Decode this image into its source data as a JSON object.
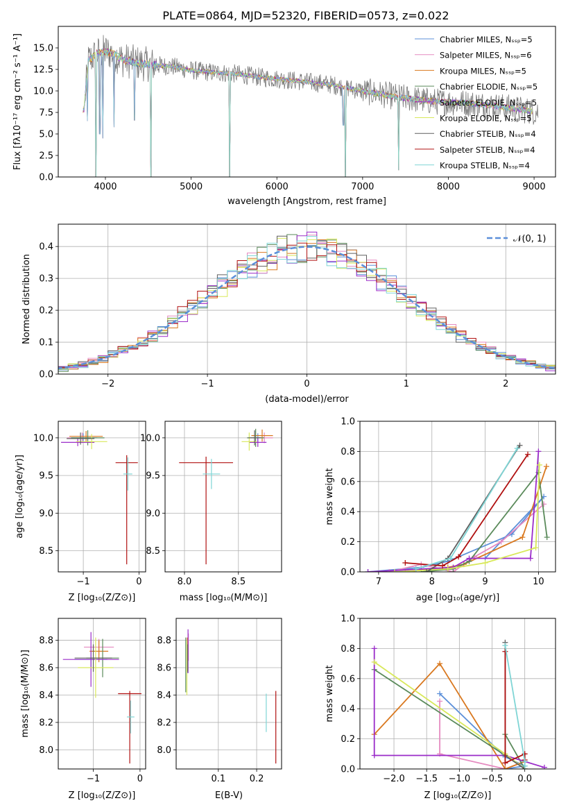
{
  "figure_title": "PLATE=0864, MJD=52320, FIBERID=0573, z=0.022",
  "colors": {
    "chab_miles": "#5b8fd9",
    "salp_miles": "#e58ac0",
    "krou_miles": "#d9781f",
    "chab_elodie": "#5a8a5a",
    "salp_elodie": "#9a2bc9",
    "krou_elodie": "#d8e85a",
    "chab_stelib": "#5f5f5f",
    "salp_stelib": "#b01010",
    "krou_stelib": "#7fd5d5",
    "gauss": "#5b8fd9",
    "grid": "#b0b0b0"
  },
  "chart_data": [
    {
      "id": "spectrum",
      "type": "line",
      "title": "",
      "xlabel": "wavelength [Angstrom, rest frame]",
      "ylabel": "Flux [fλ10⁻¹⁷ erg cm⁻² s⁻¹ A⁻¹]",
      "xlim": [
        3450,
        9250
      ],
      "ylim": [
        0,
        17.5
      ],
      "xticks": [
        4000,
        5000,
        6000,
        7000,
        8000,
        9000
      ],
      "yticks": [
        0.0,
        2.5,
        5.0,
        7.5,
        10.0,
        12.5,
        15.0
      ],
      "grid": false,
      "legend_position": "upper-right",
      "legend": [
        {
          "text": "Chabrier MILES, Nₛₛₚ=5",
          "color_key": "chab_miles"
        },
        {
          "text": "Salpeter MILES, Nₛₛₚ=6",
          "color_key": "salp_miles"
        },
        {
          "text": "Kroupa MILES, Nₛₛₚ=5",
          "color_key": "krou_miles"
        },
        {
          "text": "Chabrier ELODIE, Nₛₛₚ=5",
          "color_key": "chab_elodie"
        },
        {
          "text": "Salpeter ELODIE, Nₛₛₚ=5",
          "color_key": "salp_elodie"
        },
        {
          "text": "Kroupa ELODIE, Nₛₛₚ=5",
          "color_key": "krou_elodie"
        },
        {
          "text": "Chabrier STELIB, Nₛₛₚ=4",
          "color_key": "chab_stelib"
        },
        {
          "text": "Salpeter STELIB, Nₛₛₚ=4",
          "color_key": "salp_stelib"
        },
        {
          "text": "Kroupa STELIB, Nₛₛₚ=4",
          "color_key": "krou_stelib"
        }
      ],
      "continuum": {
        "wavelength": [
          3750,
          3800,
          3900,
          4000,
          4100,
          4200,
          4400,
          4600,
          4800,
          5000,
          5200,
          5500,
          5800,
          6000,
          6300,
          6600,
          7000,
          7400,
          7800,
          8200,
          8600,
          9000
        ],
        "flux": [
          7.8,
          13.5,
          14.3,
          14.6,
          14.3,
          13.6,
          13.2,
          13.0,
          12.8,
          12.4,
          12.2,
          12.0,
          11.6,
          11.4,
          11.1,
          10.8,
          10.0,
          9.3,
          8.8,
          8.6,
          8.2,
          7.6
        ]
      },
      "dips": [
        {
          "wavelength": 3790,
          "flux": 6.5
        },
        {
          "wavelength": 3890,
          "flux": 0.0
        },
        {
          "wavelength": 3935,
          "flux": 5.0
        },
        {
          "wavelength": 3970,
          "flux": 4.5
        },
        {
          "wavelength": 4102,
          "flux": 5.8
        },
        {
          "wavelength": 4340,
          "flux": 6.6
        },
        {
          "wavelength": 4530,
          "flux": 0.0
        },
        {
          "wavelength": 5450,
          "flux": 0.0
        },
        {
          "wavelength": 6775,
          "flux": 6.0
        },
        {
          "wavelength": 6800,
          "flux": 0.0
        },
        {
          "wavelength": 7420,
          "flux": 0.8
        }
      ]
    },
    {
      "id": "residuals",
      "type": "histogram",
      "title": "",
      "xlabel": "(data-model)/error",
      "ylabel": "Normed distribution",
      "xlim": [
        -2.5,
        2.5
      ],
      "ylim": [
        0,
        0.47
      ],
      "xticks": [
        -2,
        -1,
        0,
        1,
        2
      ],
      "yticks": [
        0.0,
        0.1,
        0.2,
        0.3,
        0.4
      ],
      "grid": true,
      "legend_position": "upper-right",
      "legend": [
        {
          "text": "𝒩(0, 1)",
          "color_key": "gauss",
          "style": "dashed"
        }
      ],
      "gaussian": {
        "mean": 0,
        "sigma": 1
      },
      "bin_width": 0.1
    },
    {
      "id": "age_vs_z",
      "type": "errorbar",
      "title": "",
      "xlabel": "Z [log₁₀(Z/Z⊙)]",
      "ylabel": "age  [log₁₀(age/yr)]",
      "xlim": [
        -1.45,
        0.12
      ],
      "ylim": [
        8.22,
        10.22
      ],
      "xticks": [
        -1,
        0
      ],
      "yticks": [
        8.5,
        9.0,
        9.5,
        10.0
      ],
      "grid": true,
      "points": [
        {
          "color_key": "chab_miles",
          "x": -1.0,
          "y": 10.0,
          "xerr": 0.25,
          "yerr": 0.06
        },
        {
          "color_key": "salp_miles",
          "x": -1.02,
          "y": 10.0,
          "xerr": 0.27,
          "yerr": 0.07
        },
        {
          "color_key": "krou_miles",
          "x": -0.95,
          "y": 10.02,
          "xerr": 0.3,
          "yerr": 0.07
        },
        {
          "color_key": "chab_elodie",
          "x": -0.92,
          "y": 10.0,
          "xerr": 0.3,
          "yerr": 0.1
        },
        {
          "color_key": "salp_elodie",
          "x": -1.1,
          "y": 9.94,
          "xerr": 0.3,
          "yerr": 0.05
        },
        {
          "color_key": "krou_elodie",
          "x": -0.85,
          "y": 9.95,
          "xerr": 0.28,
          "yerr": 0.1
        },
        {
          "color_key": "chab_stelib",
          "x": -1.05,
          "y": 9.99,
          "xerr": 0.25,
          "yerr": 0.08
        },
        {
          "color_key": "salp_stelib",
          "x": -0.22,
          "y": 9.67,
          "xerr": 0.2,
          "yerr": 0.1,
          "ylow": 8.32
        },
        {
          "color_key": "krou_stelib",
          "x": -0.2,
          "y": 9.52,
          "xerr": 0.08,
          "yerr": 0.22
        }
      ]
    },
    {
      "id": "age_vs_mass",
      "type": "errorbar",
      "title": "",
      "xlabel": "mass [log₁₀(M/M⊙)]",
      "ylabel": "",
      "xlim": [
        7.82,
        8.9
      ],
      "ylim": [
        8.22,
        10.22
      ],
      "xticks": [
        8.0,
        8.5
      ],
      "yticks": [
        8.5,
        9.0,
        9.5,
        10.0
      ],
      "grid": true,
      "points": [
        {
          "color_key": "chab_miles",
          "x": 8.68,
          "y": 10.0,
          "xerr": 0.06,
          "yerr": 0.06
        },
        {
          "color_key": "salp_miles",
          "x": 8.74,
          "y": 10.0,
          "xerr": 0.08,
          "yerr": 0.07
        },
        {
          "color_key": "krou_miles",
          "x": 8.72,
          "y": 10.03,
          "xerr": 0.1,
          "yerr": 0.08
        },
        {
          "color_key": "chab_elodie",
          "x": 8.66,
          "y": 10.0,
          "xerr": 0.08,
          "yerr": 0.12
        },
        {
          "color_key": "salp_elodie",
          "x": 8.68,
          "y": 9.94,
          "xerr": 0.08,
          "yerr": 0.06
        },
        {
          "color_key": "krou_elodie",
          "x": 8.6,
          "y": 9.95,
          "xerr": 0.07,
          "yerr": 0.12
        },
        {
          "color_key": "chab_stelib",
          "x": 8.65,
          "y": 10.0,
          "xerr": 0.06,
          "yerr": 0.1
        },
        {
          "color_key": "salp_stelib",
          "x": 8.2,
          "y": 9.67,
          "xerr": 0.25,
          "yerr": 0.08,
          "ylow": 8.32
        },
        {
          "color_key": "krou_stelib",
          "x": 8.25,
          "y": 9.52,
          "xerr": 0.08,
          "yerr": 0.2
        }
      ]
    },
    {
      "id": "weight_vs_age",
      "type": "line",
      "title": "",
      "xlabel": "age  [log₁₀(age/yr)]",
      "ylabel": "mass weight",
      "xlim": [
        6.65,
        10.32
      ],
      "ylim": [
        0,
        1.0
      ],
      "xticks": [
        7,
        8,
        9,
        10
      ],
      "yticks": [
        0.0,
        0.2,
        0.4,
        0.6,
        0.8,
        1.0
      ],
      "grid": true,
      "series": [
        {
          "color_key": "chab_miles",
          "x": [
            6.8,
            7.8,
            8.3,
            9.5,
            10.1,
            9.0
          ],
          "y": [
            0.0,
            0.03,
            0.07,
            0.25,
            0.5,
            0.09
          ]
        },
        {
          "color_key": "salp_miles",
          "x": [
            7.2,
            7.8,
            8.4,
            8.8,
            9.3,
            10.1
          ],
          "y": [
            0.0,
            0.05,
            0.0,
            0.1,
            0.2,
            0.45
          ]
        },
        {
          "color_key": "krou_miles",
          "x": [
            7.5,
            8.3,
            8.6,
            9.7,
            10.15
          ],
          "y": [
            0.0,
            0.03,
            0.05,
            0.23,
            0.7
          ]
        },
        {
          "color_key": "chab_elodie",
          "x": [
            7.8,
            8.4,
            8.7,
            10.0,
            10.16
          ],
          "y": [
            0.0,
            0.02,
            0.07,
            0.66,
            0.23
          ]
        },
        {
          "color_key": "salp_elodie",
          "x": [
            6.8,
            8.4,
            8.7,
            9.85,
            10.0
          ],
          "y": [
            0.0,
            0.03,
            0.09,
            0.09,
            0.8
          ]
        },
        {
          "color_key": "krou_elodie",
          "x": [
            7.3,
            8.3,
            9.0,
            9.95,
            10.02
          ],
          "y": [
            0.0,
            0.02,
            0.06,
            0.16,
            0.71
          ]
        },
        {
          "color_key": "chab_stelib",
          "x": [
            7.9,
            8.3,
            9.65
          ],
          "y": [
            0.0,
            0.09,
            0.84
          ]
        },
        {
          "color_key": "salp_stelib",
          "x": [
            7.5,
            8.2,
            8.5,
            9.8
          ],
          "y": [
            0.06,
            0.04,
            0.1,
            0.78
          ]
        },
        {
          "color_key": "krou_stelib",
          "x": [
            7.7,
            8.35,
            9.6
          ],
          "y": [
            0.02,
            0.09,
            0.82
          ]
        }
      ]
    },
    {
      "id": "mass_vs_z",
      "type": "errorbar",
      "title": "",
      "xlabel": "Z [log₁₀(Z/Z⊙)]",
      "ylabel": "mass [log₁₀(M/M⊙)]",
      "xlim": [
        -1.75,
        0.12
      ],
      "ylim": [
        7.86,
        8.96
      ],
      "xticks": [
        -1,
        0
      ],
      "yticks": [
        8.0,
        8.2,
        8.4,
        8.6,
        8.8
      ],
      "grid": true,
      "points": [
        {
          "color_key": "chab_miles",
          "x": -1.05,
          "y": 8.66,
          "xerr": 0.35,
          "yerr": 0.06
        },
        {
          "color_key": "salp_miles",
          "x": -0.88,
          "y": 8.75,
          "xerr": 0.32,
          "yerr": 0.06
        },
        {
          "color_key": "krou_miles",
          "x": -0.88,
          "y": 8.72,
          "xerr": 0.2,
          "yerr": 0.08
        },
        {
          "color_key": "chab_elodie",
          "x": -0.8,
          "y": 8.67,
          "xerr": 0.35,
          "yerr": 0.14
        },
        {
          "color_key": "salp_elodie",
          "x": -1.05,
          "y": 8.66,
          "xerr": 0.6,
          "yerr": 0.2
        },
        {
          "color_key": "krou_elodie",
          "x": -0.95,
          "y": 8.6,
          "xerr": 0.38,
          "yerr": 0.22
        },
        {
          "color_key": "chab_stelib",
          "x": -1.0,
          "y": 8.67,
          "xerr": 0.4,
          "yerr": 0.1
        },
        {
          "color_key": "salp_stelib",
          "x": -0.22,
          "y": 8.41,
          "xerr": 0.25,
          "yerr": 0.02,
          "ylow": 7.9
        },
        {
          "color_key": "krou_stelib",
          "x": -0.2,
          "y": 8.24,
          "xerr": 0.08,
          "yerr": 0.12
        }
      ]
    },
    {
      "id": "mass_vs_ebv",
      "type": "errorbar",
      "title": "",
      "xlabel": "E(B-V)",
      "ylabel": "",
      "xlim": [
        -0.01,
        0.265
      ],
      "ylim": [
        7.86,
        8.96
      ],
      "xticks": [
        0.1,
        0.2
      ],
      "yticks": [
        8.0,
        8.2,
        8.4,
        8.6,
        8.8
      ],
      "grid": true,
      "points": [
        {
          "color_key": "chab_miles",
          "x": 0.02,
          "y": 8.66,
          "xerr": 0,
          "yerr": 0.1
        },
        {
          "color_key": "salp_miles",
          "x": 0.022,
          "y": 8.75,
          "xerr": 0,
          "yerr": 0.1
        },
        {
          "color_key": "krou_miles",
          "x": 0.019,
          "y": 8.72,
          "xerr": 0,
          "yerr": 0.1
        },
        {
          "color_key": "chab_elodie",
          "x": 0.015,
          "y": 8.62,
          "xerr": 0,
          "yerr": 0.2
        },
        {
          "color_key": "salp_elodie",
          "x": 0.021,
          "y": 8.72,
          "xerr": 0,
          "yerr": 0.16
        },
        {
          "color_key": "krou_elodie",
          "x": 0.018,
          "y": 8.6,
          "xerr": 0,
          "yerr": 0.2
        },
        {
          "color_key": "chab_stelib",
          "x": 0.02,
          "y": 8.67,
          "xerr": 0,
          "yerr": 0.1
        },
        {
          "color_key": "salp_stelib",
          "x": 0.25,
          "y": 8.41,
          "xerr": 0,
          "yerr": 0.02,
          "ylow": 7.9
        },
        {
          "color_key": "krou_stelib",
          "x": 0.225,
          "y": 8.27,
          "xerr": 0,
          "yerr": 0.14
        }
      ]
    },
    {
      "id": "weight_vs_z",
      "type": "line",
      "title": "",
      "xlabel": "Z [log₁₀(Z/Z⊙)]",
      "ylabel": "mass weight",
      "xlim": [
        -2.52,
        0.47
      ],
      "ylim": [
        0,
        1.0
      ],
      "xticks": [
        -2.0,
        -1.5,
        -1.0,
        -0.5,
        0.0
      ],
      "yticks": [
        0.0,
        0.2,
        0.4,
        0.6,
        0.8,
        1.0
      ],
      "grid": true,
      "series": [
        {
          "color_key": "chab_miles",
          "x": [
            -1.3,
            -0.3,
            0.0,
            -0.3
          ],
          "y": [
            0.5,
            0.08,
            0.02,
            0.0
          ]
        },
        {
          "color_key": "salp_miles",
          "x": [
            -1.3,
            -1.3,
            -0.3,
            0.0
          ],
          "y": [
            0.45,
            0.1,
            0.0,
            0.05
          ]
        },
        {
          "color_key": "krou_miles",
          "x": [
            -2.3,
            -1.3,
            -0.3,
            0.0
          ],
          "y": [
            0.23,
            0.7,
            0.0,
            0.05
          ]
        },
        {
          "color_key": "chab_elodie",
          "x": [
            -2.3,
            -0.3,
            -0.3,
            0.0
          ],
          "y": [
            0.66,
            0.09,
            0.23,
            0.0
          ]
        },
        {
          "color_key": "salp_elodie",
          "x": [
            -2.3,
            -2.3,
            -0.3,
            0.3
          ],
          "y": [
            0.8,
            0.09,
            0.09,
            0.01
          ]
        },
        {
          "color_key": "krou_elodie",
          "x": [
            -2.3,
            -0.3,
            0.0
          ],
          "y": [
            0.71,
            0.1,
            0.0
          ]
        },
        {
          "color_key": "chab_stelib",
          "x": [
            -0.3,
            -0.3,
            0.0
          ],
          "y": [
            0.84,
            0.09,
            0.0
          ]
        },
        {
          "color_key": "salp_stelib",
          "x": [
            -0.3,
            -0.3,
            0.0,
            0.0
          ],
          "y": [
            0.78,
            0.04,
            0.1,
            0.06
          ]
        },
        {
          "color_key": "krou_stelib",
          "x": [
            -0.3,
            0.0,
            0.0
          ],
          "y": [
            0.82,
            0.05,
            0.02
          ]
        }
      ]
    }
  ]
}
